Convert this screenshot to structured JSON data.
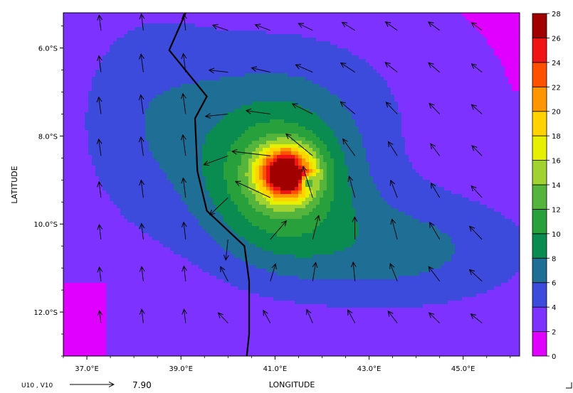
{
  "chart_data": {
    "type": "heatmap",
    "variable": "U10 , V10",
    "xlabel": "LONGITUDE",
    "ylabel": "LATITUDE",
    "xlim": [
      36.5,
      46.2
    ],
    "ylim": [
      -13.0,
      -5.2
    ],
    "x_ticks": [
      {
        "value": 37,
        "label": "37.0°E"
      },
      {
        "value": 39,
        "label": "39.0°E"
      },
      {
        "value": 41,
        "label": "41.0°E"
      },
      {
        "value": 43,
        "label": "43.0°E"
      },
      {
        "value": 45,
        "label": "45.0°E"
      }
    ],
    "y_ticks": [
      {
        "value": -6,
        "label": "6.0°S"
      },
      {
        "value": -8,
        "label": "8.0°S"
      },
      {
        "value": -10,
        "label": "10.0°S"
      },
      {
        "value": -12,
        "label": "12.0°S"
      }
    ],
    "colorbar": {
      "levels": [
        0,
        2,
        4,
        6,
        8,
        10,
        12,
        14,
        16,
        18,
        20,
        22,
        24,
        26,
        28
      ],
      "colors": [
        "#e000ff",
        "#7d32ff",
        "#3c4bdc",
        "#1e6e96",
        "#0a8c50",
        "#28a03c",
        "#55b43c",
        "#a0d232",
        "#e6f000",
        "#ffd200",
        "#ff9600",
        "#ff5000",
        "#f01414",
        "#a00000"
      ]
    },
    "cyclone_center": {
      "lon": 41.35,
      "lat": -8.9,
      "peak": 23
    },
    "reference_vector": {
      "label": "U10 , V10",
      "value": "7.90"
    },
    "coastline": [
      [
        39.1,
        -5.2
      ],
      [
        38.75,
        -6.05
      ],
      [
        39.55,
        -7.1
      ],
      [
        39.3,
        -7.6
      ],
      [
        39.35,
        -8.8
      ],
      [
        39.55,
        -9.7
      ],
      [
        39.85,
        -10.0
      ],
      [
        40.35,
        -10.5
      ],
      [
        40.45,
        -11.3
      ],
      [
        40.45,
        -12.5
      ],
      [
        40.4,
        -13.0
      ]
    ]
  }
}
